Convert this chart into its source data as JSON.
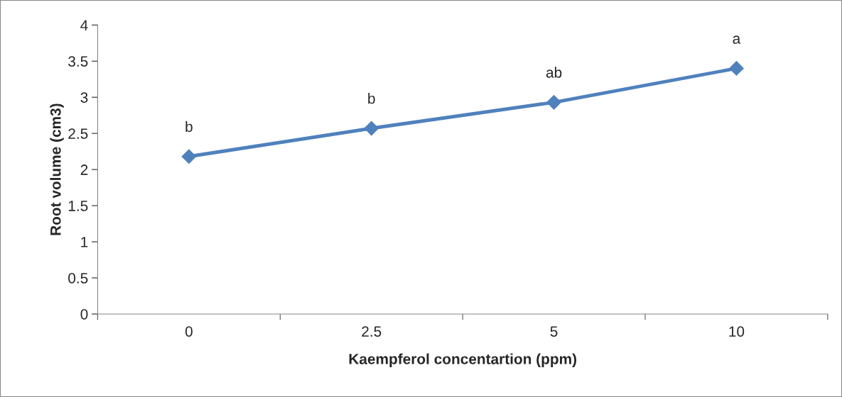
{
  "chart_data": {
    "type": "line",
    "xlabel": "Kaempferol concentartion (ppm)",
    "ylabel": "Root volume (cm3)",
    "categories": [
      "0",
      "2.5",
      "5",
      "10"
    ],
    "series": [
      {
        "color": "#4f81bd",
        "values": [
          2.18,
          2.57,
          2.93,
          3.4
        ]
      }
    ],
    "ylim": [
      0,
      4
    ],
    "yticks": [
      0,
      0.5,
      1,
      1.5,
      2,
      2.5,
      3,
      3.5,
      4
    ],
    "marker": "diamond",
    "line_style": "solid",
    "grid": false,
    "legend": false,
    "annotations": [
      {
        "text": "b",
        "x": "0",
        "y": 2.18
      },
      {
        "text": "b",
        "x": "2.5",
        "y": 2.57
      },
      {
        "text": "ab",
        "x": "5",
        "y": 2.93
      },
      {
        "text": "a",
        "x": "10",
        "y": 3.4
      }
    ]
  }
}
